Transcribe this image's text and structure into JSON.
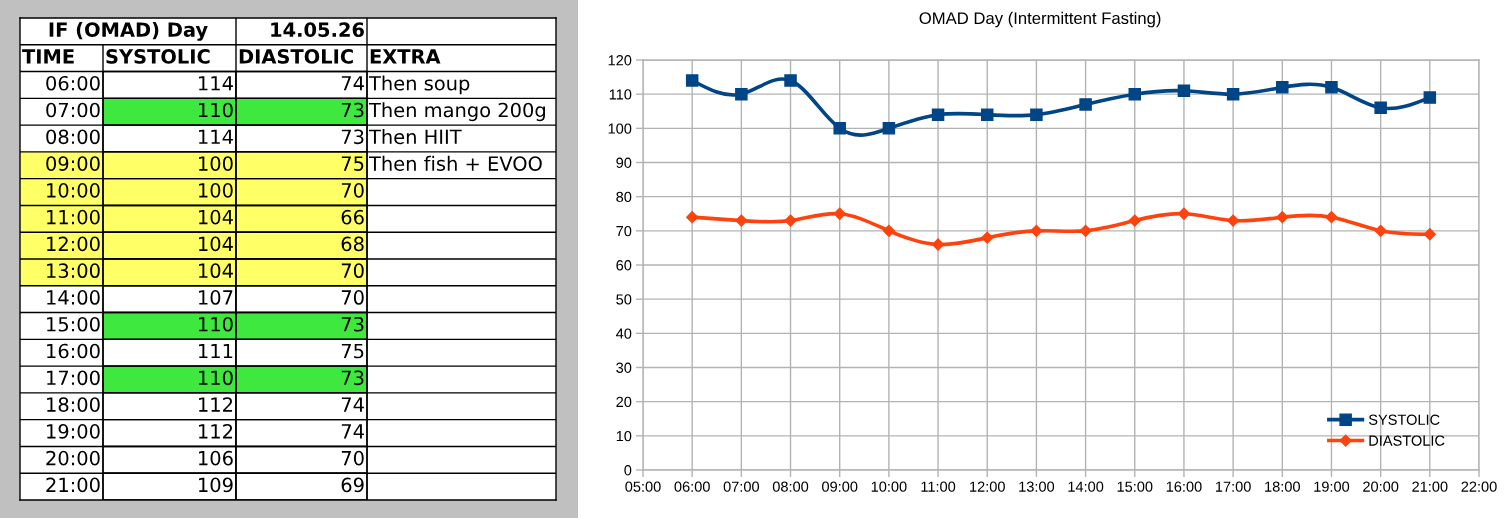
{
  "chart_data": [
    {
      "type": "heatmap",
      "title": "IF (OMAD) Day",
      "subtitle": "14.05.26",
      "ylabel": "TIME",
      "y2label": "EXTRA",
      "categories": [
        "SYSTOLIC",
        "DIASTOLIC"
      ],
      "y_categories": [
        "06:00",
        "07:00",
        "08:00",
        "09:00",
        "10:00",
        "11:00",
        "12:00",
        "13:00",
        "14:00",
        "15:00",
        "16:00",
        "17:00",
        "18:00",
        "19:00",
        "20:00",
        "21:00"
      ],
      "y2_categories": [
        "Then soup",
        "Then mango 200g",
        "Then HIIT",
        "Then fish + EVOO",
        null,
        null,
        null,
        null,
        null,
        null,
        null,
        null,
        null,
        null,
        null,
        null
      ],
      "cells": [
        [
          114,
          74
        ],
        [
          110,
          73
        ],
        [
          114,
          73
        ],
        [
          100,
          75
        ],
        [
          100,
          70
        ],
        [
          104,
          66
        ],
        [
          104,
          68
        ],
        [
          104,
          70
        ],
        [
          107,
          70
        ],
        [
          110,
          73
        ],
        [
          111,
          75
        ],
        [
          110,
          73
        ],
        [
          112,
          74
        ],
        [
          112,
          74
        ],
        [
          106,
          70
        ],
        [
          109,
          69
        ]
      ],
      "data_labels": true,
      "colors": [
        [
          "#ffffff",
          "#ffffff"
        ],
        [
          "#3ee83e",
          "#3ee83e"
        ],
        [
          "#ffffff",
          "#ffffff"
        ],
        [
          "#ffff66",
          "#ffff66"
        ],
        [
          "#ffff66",
          "#ffff66"
        ],
        [
          "#ffff66",
          "#ffff66"
        ],
        [
          "#ffff66",
          "#ffff66"
        ],
        [
          "#ffff66",
          "#ffff66"
        ],
        [
          "#ffffff",
          "#ffffff"
        ],
        [
          "#3ee83e",
          "#3ee83e"
        ],
        [
          "#ffffff",
          "#ffffff"
        ],
        [
          "#3ee83e",
          "#3ee83e"
        ],
        [
          "#ffffff",
          "#ffffff"
        ],
        [
          "#ffffff",
          "#ffffff"
        ],
        [
          "#ffffff",
          "#ffffff"
        ],
        [
          "#ffffff",
          "#ffffff"
        ]
      ],
      "bands": [
        {
          "axis": "y",
          "from": "09:00",
          "to": "13:00",
          "color": "#ffff66"
        }
      ]
    },
    {
      "type": "line",
      "title": "OMAD Day (Intermittent Fasting)",
      "x": [
        6,
        7,
        8,
        9,
        10,
        11,
        12,
        13,
        14,
        15,
        16,
        17,
        18,
        19,
        20,
        21
      ],
      "xlim": [
        5,
        22
      ],
      "xticks": [
        {
          "value": 5,
          "label": "05:00"
        },
        {
          "value": 6,
          "label": "06:00"
        },
        {
          "value": 7,
          "label": "07:00"
        },
        {
          "value": 8,
          "label": "08:00"
        },
        {
          "value": 9,
          "label": "09:00"
        },
        {
          "value": 10,
          "label": "10:00"
        },
        {
          "value": 11,
          "label": "11:00"
        },
        {
          "value": 12,
          "label": "12:00"
        },
        {
          "value": 13,
          "label": "13:00"
        },
        {
          "value": 14,
          "label": "14:00"
        },
        {
          "value": 15,
          "label": "15:00"
        },
        {
          "value": 16,
          "label": "16:00"
        },
        {
          "value": 17,
          "label": "17:00"
        },
        {
          "value": 18,
          "label": "18:00"
        },
        {
          "value": 19,
          "label": "19:00"
        },
        {
          "value": 20,
          "label": "20:00"
        },
        {
          "value": 21,
          "label": "21:00"
        },
        {
          "value": 22,
          "label": "22:00"
        }
      ],
      "ylim": [
        0,
        120
      ],
      "yticks": [
        0,
        10,
        20,
        30,
        40,
        50,
        60,
        70,
        80,
        90,
        100,
        110,
        120
      ],
      "grid": true,
      "legend": "bottom right",
      "series": [
        {
          "name": "SYSTOLIC",
          "color": "#004586",
          "marker": "square",
          "values": [
            114,
            110,
            114,
            100,
            100,
            104,
            104,
            104,
            107,
            110,
            111,
            110,
            112,
            112,
            106,
            109
          ]
        },
        {
          "name": "DIASTOLIC",
          "color": "#ff420e",
          "marker": "diamond",
          "values": [
            74,
            73,
            73,
            75,
            70,
            66,
            68,
            70,
            70,
            73,
            75,
            73,
            74,
            74,
            70,
            69
          ]
        }
      ]
    }
  ]
}
